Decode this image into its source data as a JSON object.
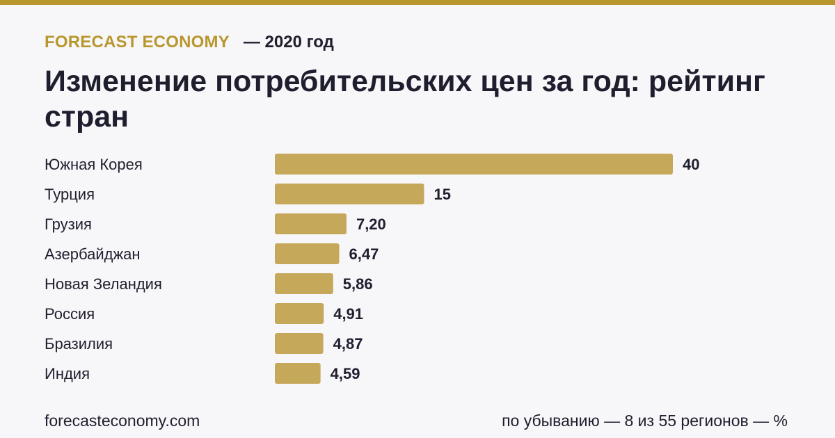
{
  "header": {
    "brand": "FORECAST ECONOMY",
    "year": "— 2020 год"
  },
  "title": "Изменение потребительских цен за год: рейтинг стран",
  "footer": {
    "site": "forecasteconomy.com",
    "note": "по убыванию — 8 из 55 регионов — %"
  },
  "colors": {
    "accent": "#b8972e",
    "bar": "#c6a85b",
    "text": "#1e1e2e",
    "background": "#f7f7f9"
  },
  "chart_data": {
    "type": "bar",
    "orientation": "horizontal",
    "categories": [
      "Южная Корея",
      "Турция",
      "Грузия",
      "Азербайджан",
      "Новая Зеландия",
      "Россия",
      "Бразилия",
      "Индия"
    ],
    "values": [
      40,
      15,
      7.2,
      6.47,
      5.86,
      4.91,
      4.87,
      4.59
    ],
    "value_labels": [
      "40",
      "15",
      "7,20",
      "6,47",
      "5,86",
      "4,91",
      "4,87",
      "4,59"
    ],
    "title": "",
    "xlabel": "",
    "ylabel": "",
    "grid": false,
    "legend": "none"
  }
}
